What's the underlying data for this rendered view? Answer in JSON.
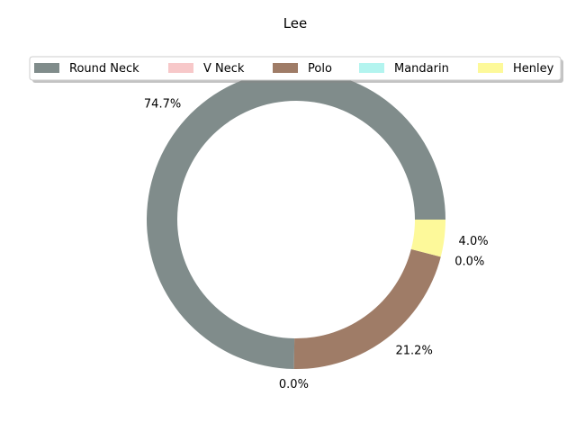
{
  "chart_data": {
    "type": "pie",
    "style": "donut",
    "title": "Lee",
    "legend_placement": "top-center",
    "slices": [
      {
        "name": "Round Neck",
        "value": 74.7,
        "label": "74.7%",
        "color": "#808c8b"
      },
      {
        "name": "V Neck",
        "value": 0.0,
        "label": "0.0%",
        "color": "#f7c8c9"
      },
      {
        "name": "Polo",
        "value": 21.2,
        "label": "21.2%",
        "color": "#9f7c67"
      },
      {
        "name": "Mandarin",
        "value": 0.0,
        "label": "0.0%",
        "color": "#b3f4ef"
      },
      {
        "name": "Henley",
        "value": 4.0,
        "label": "4.0%",
        "color": "#fdf99a"
      }
    ]
  }
}
